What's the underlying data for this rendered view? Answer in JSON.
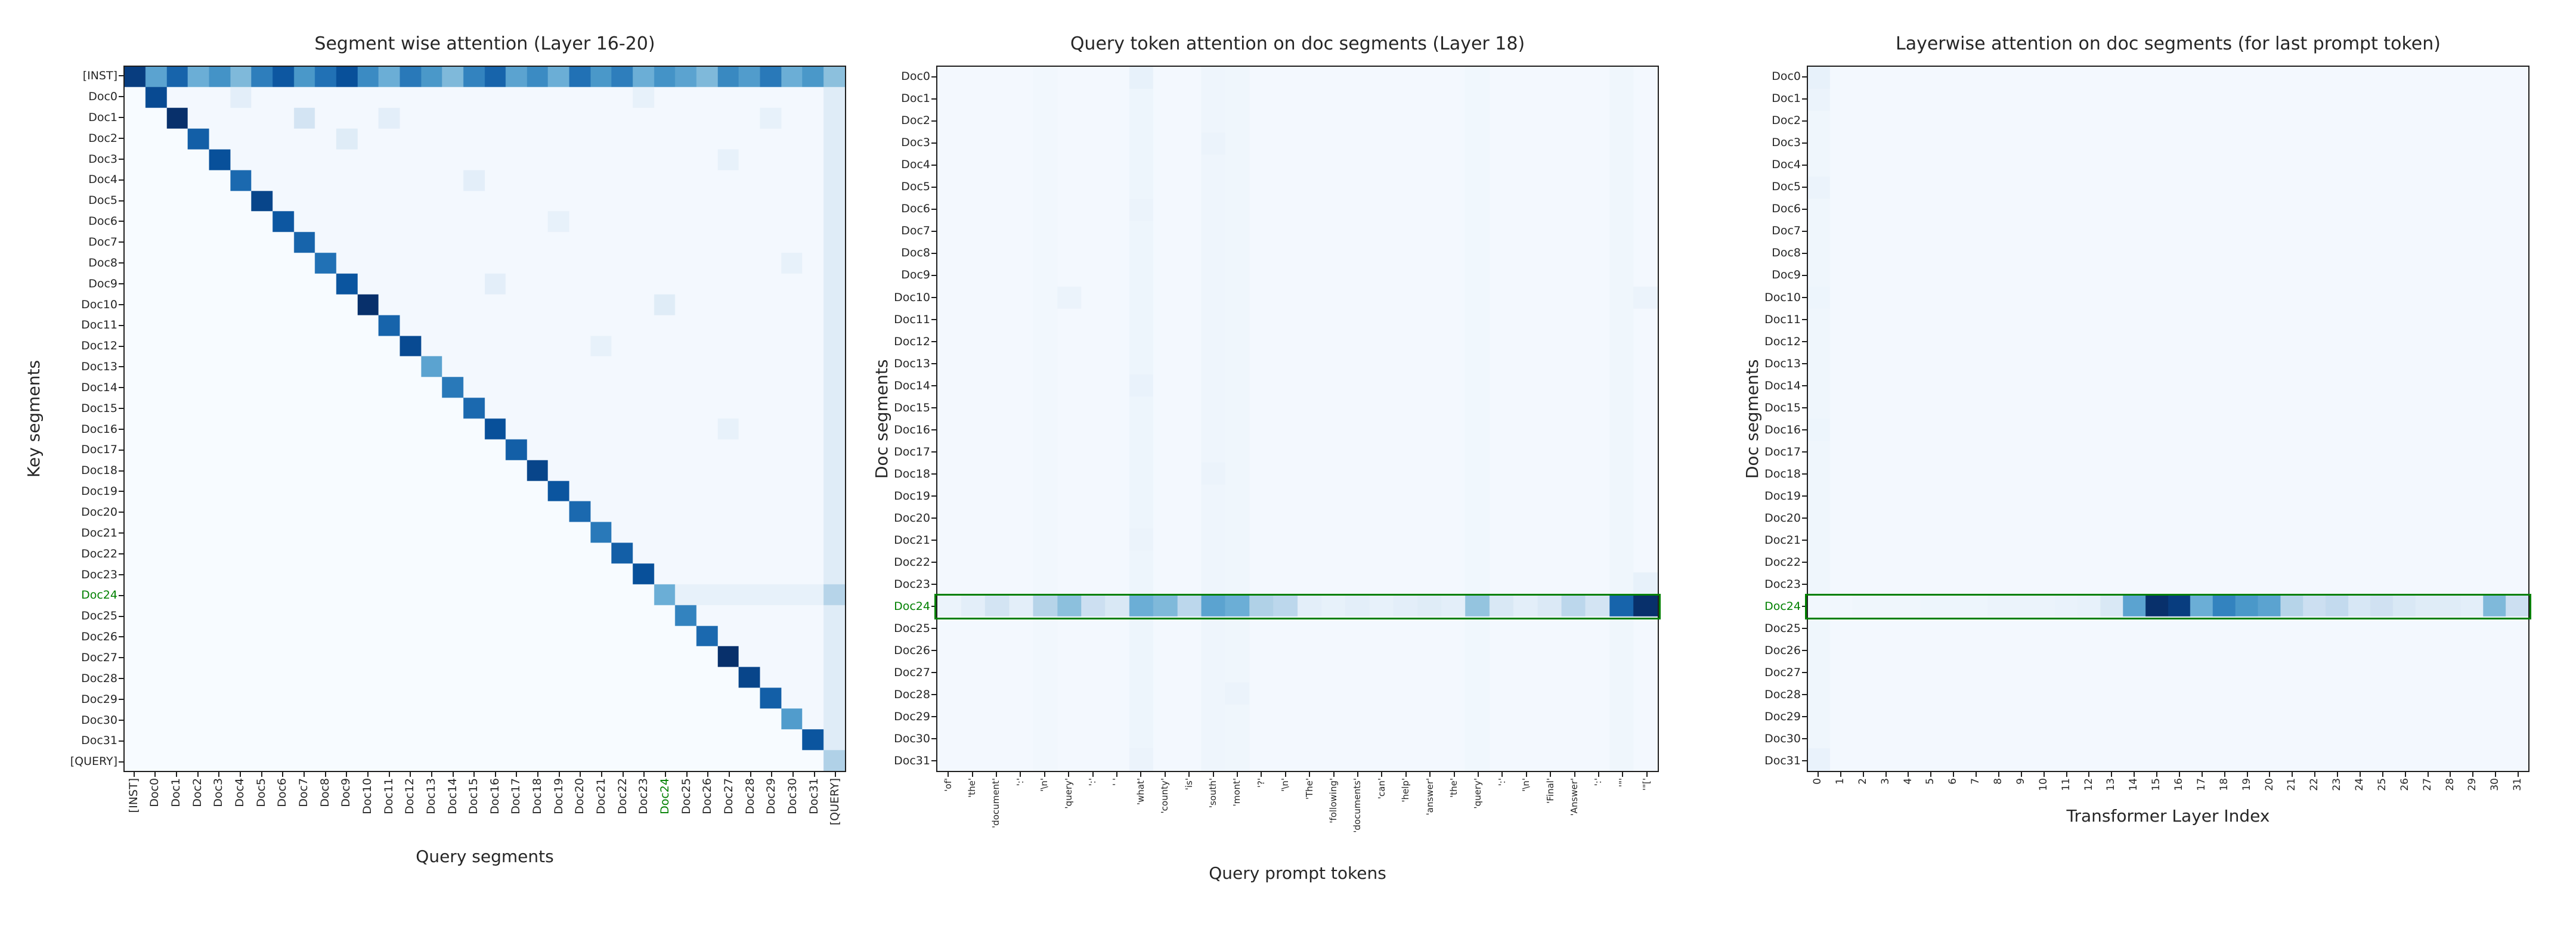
{
  "style": {
    "background": "#ffffff",
    "text_color": "#262626",
    "frame_color": "#1f1f1f",
    "highlight_color": "#008000",
    "colormap": "Blues",
    "colormap_low": "#f7fbff",
    "colormap_high": "#08306b"
  },
  "chart_data": [
    {
      "type": "heatmap",
      "title": "Segment wise attention (Layer 16-20)",
      "xlabel": "Query segments",
      "ylabel": "Key segments",
      "colormap": "Blues",
      "row_labels": [
        "[INST]",
        "Doc0",
        "Doc1",
        "Doc2",
        "Doc3",
        "Doc4",
        "Doc5",
        "Doc6",
        "Doc7",
        "Doc8",
        "Doc9",
        "Doc10",
        "Doc11",
        "Doc12",
        "Doc13",
        "Doc14",
        "Doc15",
        "Doc16",
        "Doc17",
        "Doc18",
        "Doc19",
        "Doc20",
        "Doc21",
        "Doc22",
        "Doc23",
        "Doc24",
        "Doc25",
        "Doc26",
        "Doc27",
        "Doc28",
        "Doc29",
        "Doc30",
        "Doc31",
        "[QUERY]"
      ],
      "highlight": {
        "label": "Doc24",
        "axes": [
          "x",
          "y"
        ],
        "row_box": false
      },
      "values": {
        "n_rows": 34,
        "n_cols": 34,
        "default": 0.0,
        "upper_triangle_default": 0.02,
        "top_row": [
          0.95,
          0.55,
          0.8,
          0.5,
          0.62,
          0.45,
          0.7,
          0.85,
          0.6,
          0.75,
          0.88,
          0.65,
          0.5,
          0.72,
          0.6,
          0.45,
          0.68,
          0.8,
          0.55,
          0.65,
          0.5,
          0.75,
          0.6,
          0.7,
          0.5,
          0.62,
          0.55,
          0.45,
          0.66,
          0.58,
          0.72,
          0.5,
          0.6,
          0.42
        ],
        "diag": [
          0.95,
          0.9,
          1.0,
          0.82,
          0.88,
          0.78,
          0.92,
          0.85,
          0.8,
          0.75,
          0.86,
          1.0,
          0.8,
          0.9,
          0.55,
          0.72,
          0.78,
          0.88,
          0.82,
          0.92,
          0.86,
          0.78,
          0.72,
          0.82,
          0.88,
          0.5,
          0.68,
          0.78,
          1.0,
          0.92,
          0.82,
          0.58,
          0.86,
          0.32
        ],
        "last_col": 0.12,
        "rows": {
          "25": {
            "from": 26,
            "value": 0.08
          }
        },
        "cells": [
          [
            2,
            8,
            0.18
          ],
          [
            1,
            5,
            0.1
          ],
          [
            2,
            12,
            0.1
          ],
          [
            3,
            10,
            0.12
          ],
          [
            5,
            16,
            0.1
          ],
          [
            7,
            20,
            0.08
          ],
          [
            10,
            17,
            0.1
          ],
          [
            1,
            24,
            0.08
          ],
          [
            4,
            28,
            0.08
          ],
          [
            11,
            25,
            0.12
          ],
          [
            13,
            22,
            0.08
          ],
          [
            17,
            28,
            0.08
          ],
          [
            2,
            30,
            0.08
          ],
          [
            9,
            31,
            0.08
          ],
          [
            25,
            33,
            0.3
          ]
        ]
      }
    },
    {
      "type": "heatmap",
      "title": "Query token attention on doc segments (Layer 18)",
      "xlabel": "Query prompt tokens",
      "ylabel": "Doc segments",
      "colormap": "Blues",
      "row_labels": [
        "Doc0",
        "Doc1",
        "Doc2",
        "Doc3",
        "Doc4",
        "Doc5",
        "Doc6",
        "Doc7",
        "Doc8",
        "Doc9",
        "Doc10",
        "Doc11",
        "Doc12",
        "Doc13",
        "Doc14",
        "Doc15",
        "Doc16",
        "Doc17",
        "Doc18",
        "Doc19",
        "Doc20",
        "Doc21",
        "Doc22",
        "Doc23",
        "Doc24",
        "Doc25",
        "Doc26",
        "Doc27",
        "Doc28",
        "Doc29",
        "Doc30",
        "Doc31"
      ],
      "col_labels": [
        "'of'",
        "'the'",
        "'document'",
        "':'",
        "'\\n'",
        "'query'",
        "':'",
        "' '",
        "'what'",
        "'county'",
        "'is'",
        "'south'",
        "'mont'",
        "'?'",
        "'\\n'",
        "'The'",
        "'following'",
        "'documents'",
        "'can'",
        "'help'",
        "'answer'",
        "'the'",
        "'query'",
        "':'",
        "'\\n'",
        "'Final'",
        "'Answer'",
        "':'",
        "'\"'",
        "'\"['"
      ],
      "highlight": {
        "label": "Doc24",
        "axes": [
          "y"
        ],
        "row_box": true
      },
      "values": {
        "n_rows": 32,
        "n_cols": 30,
        "default": 0.02,
        "col_boosts": {
          "4": 0.03,
          "8": 0.05,
          "11": 0.045,
          "12": 0.04,
          "22": 0.035,
          "28": 0.04
        },
        "rows": {
          "24": [
            0.06,
            0.1,
            0.18,
            0.1,
            0.3,
            0.42,
            0.22,
            0.15,
            0.5,
            0.45,
            0.28,
            0.55,
            0.5,
            0.32,
            0.28,
            0.1,
            0.08,
            0.1,
            0.08,
            0.1,
            0.12,
            0.1,
            0.4,
            0.15,
            0.1,
            0.14,
            0.28,
            0.18,
            0.8,
            1.0
          ]
        },
        "cells": [
          [
            0,
            8,
            0.08
          ],
          [
            3,
            11,
            0.06
          ],
          [
            6,
            8,
            0.06
          ],
          [
            10,
            5,
            0.06
          ],
          [
            14,
            8,
            0.07
          ],
          [
            18,
            11,
            0.06
          ],
          [
            21,
            8,
            0.06
          ],
          [
            28,
            12,
            0.06
          ],
          [
            31,
            8,
            0.06
          ],
          [
            23,
            29,
            0.08
          ],
          [
            10,
            29,
            0.06
          ]
        ]
      }
    },
    {
      "type": "heatmap",
      "title": "Layerwise attention on doc segments (for last prompt token)",
      "xlabel": "Transformer Layer Index",
      "ylabel": "Doc segments",
      "colormap": "Blues",
      "row_labels": [
        "Doc0",
        "Doc1",
        "Doc2",
        "Doc3",
        "Doc4",
        "Doc5",
        "Doc6",
        "Doc7",
        "Doc8",
        "Doc9",
        "Doc10",
        "Doc11",
        "Doc12",
        "Doc13",
        "Doc14",
        "Doc15",
        "Doc16",
        "Doc17",
        "Doc18",
        "Doc19",
        "Doc20",
        "Doc21",
        "Doc22",
        "Doc23",
        "Doc24",
        "Doc25",
        "Doc26",
        "Doc27",
        "Doc28",
        "Doc29",
        "Doc30",
        "Doc31"
      ],
      "col_labels": [
        "0",
        "1",
        "2",
        "3",
        "4",
        "5",
        "6",
        "7",
        "8",
        "9",
        "10",
        "11",
        "12",
        "13",
        "14",
        "15",
        "16",
        "17",
        "18",
        "19",
        "20",
        "21",
        "22",
        "23",
        "24",
        "25",
        "26",
        "27",
        "28",
        "29",
        "30",
        "31"
      ],
      "highlight": {
        "label": "Doc24",
        "axes": [
          "y"
        ],
        "row_box": true
      },
      "values": {
        "n_rows": 32,
        "n_cols": 32,
        "default": 0.02,
        "col_boosts": {
          "0": 0.04
        },
        "rows": {
          "24": [
            0.03,
            0.03,
            0.04,
            0.04,
            0.04,
            0.05,
            0.05,
            0.05,
            0.06,
            0.06,
            0.06,
            0.07,
            0.08,
            0.15,
            0.55,
            1.0,
            0.95,
            0.5,
            0.68,
            0.6,
            0.55,
            0.3,
            0.22,
            0.26,
            0.16,
            0.2,
            0.15,
            0.12,
            0.12,
            0.1,
            0.45,
            0.22
          ]
        },
        "cells": [
          [
            0,
            0,
            0.08
          ],
          [
            1,
            0,
            0.06
          ],
          [
            5,
            0,
            0.06
          ],
          [
            10,
            0,
            0.05
          ],
          [
            16,
            0,
            0.05
          ],
          [
            31,
            0,
            0.07
          ]
        ]
      }
    }
  ]
}
